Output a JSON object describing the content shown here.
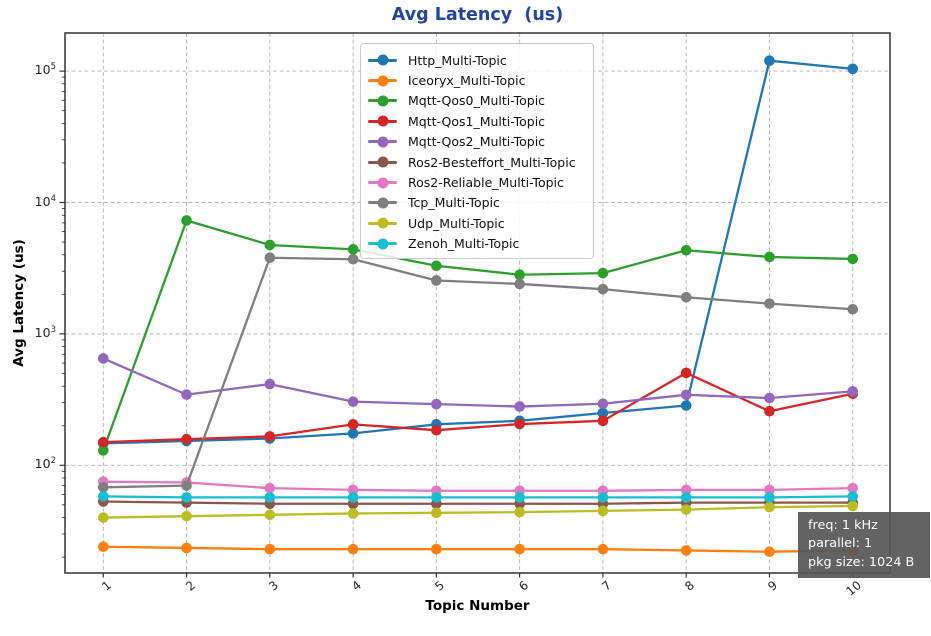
{
  "title": "Avg Latency  (us)",
  "colors": {
    "title": "#2343a5",
    "annotation_bg": "rgba(86,86,86,0.92)",
    "annotation_text": "#ffffff",
    "grid": "#b3b3b3",
    "axis": "#262626"
  },
  "annotation": {
    "lines": [
      "freq: 1 kHz",
      "parallel: 1",
      "pkg size: 1024 B"
    ]
  },
  "chart_data": {
    "type": "line",
    "title": "Avg Latency  (us)",
    "xlabel": "Topic Number",
    "ylabel": "Avg Latency (us)",
    "x": [
      1,
      2,
      3,
      4,
      5,
      6,
      7,
      8,
      9,
      10
    ],
    "yscale": "log",
    "ylim": [
      15,
      195000
    ],
    "ytick_exponents": [
      2,
      3,
      4,
      5
    ],
    "grid": true,
    "legend_position": "upper center",
    "series": [
      {
        "name": "Http_Multi-Topic",
        "color": "#1f77b4",
        "values": [
          147,
          153,
          160,
          175,
          205,
          218,
          250,
          285,
          120000,
          104000
        ]
      },
      {
        "name": "Iceoryx_Multi-Topic",
        "color": "#ff7f0e",
        "values": [
          24,
          23.5,
          23,
          23,
          23,
          23,
          23,
          22.5,
          22,
          22.5
        ]
      },
      {
        "name": "Mqtt-Qos0_Multi-Topic",
        "color": "#2ca02c",
        "values": [
          130,
          7300,
          4750,
          4400,
          3300,
          2820,
          2900,
          4330,
          3850,
          3720
        ]
      },
      {
        "name": "Mqtt-Qos1_Multi-Topic",
        "color": "#d62728",
        "values": [
          150,
          158,
          166,
          205,
          185,
          206,
          218,
          505,
          258,
          350
        ]
      },
      {
        "name": "Mqtt-Qos2_Multi-Topic",
        "color": "#9467bd",
        "values": [
          650,
          345,
          415,
          305,
          292,
          280,
          294,
          344,
          325,
          365
        ]
      },
      {
        "name": "Ros2-Besteffort_Multi-Topic",
        "color": "#8c564b",
        "values": [
          53,
          52,
          51,
          51,
          51,
          51,
          51,
          52,
          52,
          52
        ]
      },
      {
        "name": "Ros2-Reliable_Multi-Topic",
        "color": "#e377c2",
        "values": [
          75,
          74,
          67,
          65,
          64,
          64,
          64,
          65,
          65,
          67
        ]
      },
      {
        "name": "Tcp_Multi-Topic",
        "color": "#7f7f7f",
        "values": [
          68,
          70,
          3800,
          3700,
          2550,
          2400,
          2190,
          1900,
          1700,
          1540
        ]
      },
      {
        "name": "Udp_Multi-Topic",
        "color": "#bcbd22",
        "values": [
          40,
          41,
          42,
          43,
          43.5,
          44,
          45,
          46,
          48,
          49
        ]
      },
      {
        "name": "Zenoh_Multi-Topic",
        "color": "#17becf",
        "values": [
          58,
          57,
          57,
          57,
          57,
          57,
          57,
          57,
          57,
          58
        ]
      }
    ]
  }
}
